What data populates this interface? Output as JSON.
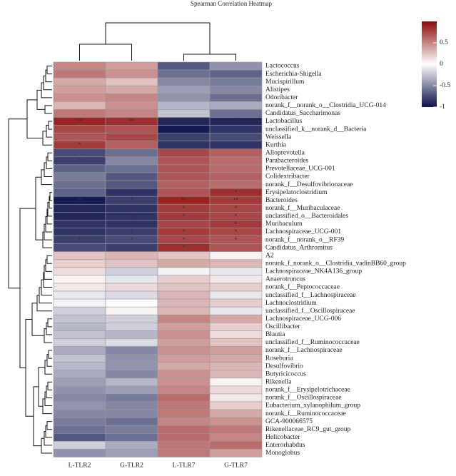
{
  "chart_data": {
    "type": "heatmap",
    "title": "Spearman Correlation Heatmap",
    "columns": [
      "L-TLR2",
      "G-TLR2",
      "L-TLR7",
      "G-TLR7"
    ],
    "rows": [
      "Lactococcus",
      "Escherichia-Shigella",
      "Mucispirillum",
      "Alistipes",
      "Odoribacter",
      "norank_f__norank_o__Clostridia_UCG-014",
      "Candidatus_Saccharimonas",
      "Lactobacillus",
      "unclassified_k__norank_d__Bacteria",
      "Weissella",
      "Kurthia",
      "Alloprevotella",
      "Parabacteroides",
      "Prevotellaceae_UCG-001",
      "Colidextribacter",
      "norank_f__Desulfovibrionaceae",
      "Erysipelatoclostridium",
      "Bacteroides",
      "norank_f__Muribaculaceae",
      "unclassified_o__Bacteroidales",
      "Muribaculum",
      "Lachnospiraceae_UCG-001",
      "norank_f__norank_o__RF39",
      "Candidatus_Arthromitus",
      "A2",
      "norank_f_norank_o__Clostridia_vadinBB60_group",
      "Lachnospiraceae_NK4A136_group",
      "Anaerotruncus",
      "norank_f__Peptococcaceae",
      "unclassified_f__Lachnospiraceae",
      "Lachnoclostridium",
      "unclassified_f__Oscillospiraceae",
      "Lachnospiraceae_UCG-006",
      "Oscillibacter",
      "Blautia",
      "unclassified_f__Ruminococcaceae",
      "norank_f__Lachnospiraceae",
      "Roseburia",
      "Desulfovibrio",
      "Butyricicoccus",
      "Rikenella",
      "norank_f__Erysipelotrichaceae",
      "norank_f__Oscillospiraceae",
      "Eubacterium_xylanophilum_group",
      "norank_f__Ruminococcaceae",
      "GCA-900066575",
      "Rikenellaceae_RC9_gut_group",
      "Helicobacter",
      "Enterorhabdus",
      "Monoglobus"
    ],
    "values": [
      [
        0.5,
        0.4,
        -0.7,
        -0.45
      ],
      [
        0.55,
        0.45,
        -0.6,
        -0.65
      ],
      [
        0.35,
        0.25,
        -0.5,
        -0.55
      ],
      [
        0.4,
        0.35,
        -0.4,
        -0.5
      ],
      [
        0.45,
        0.5,
        -0.45,
        -0.6
      ],
      [
        0.3,
        0.45,
        -0.3,
        -0.35
      ],
      [
        0.55,
        0.5,
        -0.25,
        -0.6
      ],
      [
        0.9,
        0.85,
        -0.9,
        -0.9
      ],
      [
        0.75,
        0.7,
        -0.95,
        -0.85
      ],
      [
        0.7,
        0.75,
        -0.8,
        -0.75
      ],
      [
        0.8,
        0.65,
        -0.85,
        -0.85
      ],
      [
        -0.75,
        -0.6,
        0.75,
        0.65
      ],
      [
        -0.8,
        -0.5,
        0.7,
        0.6
      ],
      [
        -0.65,
        -0.6,
        0.7,
        0.6
      ],
      [
        -0.55,
        -0.7,
        0.7,
        0.65
      ],
      [
        -0.6,
        -0.7,
        0.65,
        0.6
      ],
      [
        -0.65,
        -0.85,
        0.7,
        0.85
      ],
      [
        -0.95,
        -0.8,
        0.9,
        0.8
      ],
      [
        -0.9,
        -0.85,
        0.8,
        0.75
      ],
      [
        -0.9,
        -0.85,
        0.8,
        0.75
      ],
      [
        -0.85,
        -0.85,
        0.75,
        0.8
      ],
      [
        -0.85,
        -0.8,
        0.8,
        0.75
      ],
      [
        -0.8,
        -0.75,
        0.75,
        0.7
      ],
      [
        -0.75,
        -0.8,
        0.85,
        0.7
      ],
      [
        0.25,
        0.3,
        0.25,
        0.05
      ],
      [
        0.2,
        0.25,
        0.35,
        0.3
      ],
      [
        0.15,
        -0.2,
        -0.05,
        -0.1
      ],
      [
        0.05,
        -0.1,
        0.2,
        0.1
      ],
      [
        0.1,
        0.15,
        0.25,
        0.2
      ],
      [
        -0.1,
        -0.15,
        0.3,
        -0.1
      ],
      [
        -0.05,
        0.0,
        0.3,
        0.2
      ],
      [
        -0.2,
        0.05,
        0.3,
        -0.1
      ],
      [
        -0.25,
        -0.2,
        0.5,
        0.35
      ],
      [
        -0.3,
        -0.2,
        0.4,
        0.2
      ],
      [
        -0.25,
        -0.3,
        0.45,
        0.15
      ],
      [
        -0.2,
        -0.15,
        0.4,
        0.25
      ],
      [
        -0.35,
        -0.5,
        0.45,
        0.4
      ],
      [
        -0.25,
        -0.45,
        0.4,
        0.35
      ],
      [
        -0.3,
        -0.45,
        0.35,
        0.3
      ],
      [
        -0.35,
        -0.5,
        0.45,
        0.3
      ],
      [
        -0.4,
        -0.3,
        0.45,
        0.05
      ],
      [
        -0.45,
        -0.4,
        0.5,
        0.15
      ],
      [
        -0.5,
        -0.55,
        0.6,
        0.1
      ],
      [
        -0.45,
        -0.5,
        0.55,
        0.2
      ],
      [
        -0.5,
        -0.5,
        0.55,
        0.35
      ],
      [
        -0.55,
        -0.6,
        0.5,
        0.45
      ],
      [
        -0.6,
        -0.55,
        0.6,
        0.55
      ],
      [
        -0.7,
        -0.6,
        0.6,
        0.5
      ],
      [
        -0.2,
        -0.35,
        0.55,
        0.6
      ],
      [
        -0.45,
        -0.4,
        0.55,
        0.4
      ]
    ],
    "significance": [
      [
        "",
        "",
        "",
        ""
      ],
      [
        "",
        "",
        "",
        ""
      ],
      [
        "",
        "",
        "",
        ""
      ],
      [
        "",
        "",
        "",
        ""
      ],
      [
        "",
        "",
        "",
        ""
      ],
      [
        "",
        "",
        "",
        ""
      ],
      [
        "",
        "",
        "",
        ""
      ],
      [
        "**",
        "**",
        "",
        "*"
      ],
      [
        "",
        "",
        "",
        ""
      ],
      [
        "",
        "",
        "",
        ""
      ],
      [
        "*",
        "",
        "",
        ""
      ],
      [
        "",
        "",
        "",
        ""
      ],
      [
        "*",
        "",
        "",
        ""
      ],
      [
        "",
        "",
        "",
        ""
      ],
      [
        "",
        "",
        "",
        ""
      ],
      [
        "",
        "",
        "",
        ""
      ],
      [
        "",
        "*",
        "",
        "*"
      ],
      [
        "**",
        "*",
        "**",
        "**"
      ],
      [
        "*",
        "*",
        "*",
        "*"
      ],
      [
        "*",
        "*",
        "*",
        "*"
      ],
      [
        "",
        "*",
        "",
        "*"
      ],
      [
        "*",
        "*",
        "*",
        "*"
      ],
      [
        "*",
        "*",
        "*",
        "*"
      ],
      [
        "",
        "",
        "*",
        ""
      ],
      [
        "",
        "",
        "",
        ""
      ],
      [
        "",
        "",
        "",
        ""
      ],
      [
        "",
        "",
        "",
        ""
      ],
      [
        "",
        "",
        "",
        ""
      ],
      [
        "",
        "",
        "",
        ""
      ],
      [
        "",
        "",
        "",
        ""
      ],
      [
        "",
        "",
        "",
        ""
      ],
      [
        "",
        "",
        "",
        ""
      ],
      [
        "",
        "",
        "",
        ""
      ],
      [
        "",
        "",
        "",
        ""
      ],
      [
        "",
        "",
        "",
        ""
      ],
      [
        "",
        "",
        "",
        ""
      ],
      [
        "",
        "",
        "",
        ""
      ],
      [
        "",
        "",
        "",
        ""
      ],
      [
        "",
        "",
        "",
        ""
      ],
      [
        "",
        "",
        "",
        ""
      ],
      [
        "",
        "",
        "",
        ""
      ],
      [
        "",
        "",
        "",
        ""
      ],
      [
        "",
        "",
        "",
        ""
      ],
      [
        "",
        "",
        "",
        ""
      ],
      [
        "",
        "",
        "",
        ""
      ],
      [
        "",
        "",
        "",
        ""
      ],
      [
        "",
        "",
        "",
        ""
      ],
      [
        "",
        "",
        "",
        ""
      ],
      [
        "",
        "",
        "",
        ""
      ],
      [
        "",
        "",
        "",
        ""
      ]
    ],
    "colorbar": {
      "range": [
        -1,
        1
      ],
      "ticks": [
        0.5,
        0,
        -0.5,
        -1
      ],
      "colors": {
        "high": "#8b0a0a",
        "mid": "#ffffff",
        "low": "#0b0f4a"
      }
    },
    "column_dendrogram": "((L-TLR2,G-TLR2),(L-TLR7,G-TLR7))",
    "row_dendrogram_groups": [
      "rows 0-10 (positively correlated with TLR2)",
      "rows 11-49 (negatively correlated with TLR2)"
    ]
  }
}
